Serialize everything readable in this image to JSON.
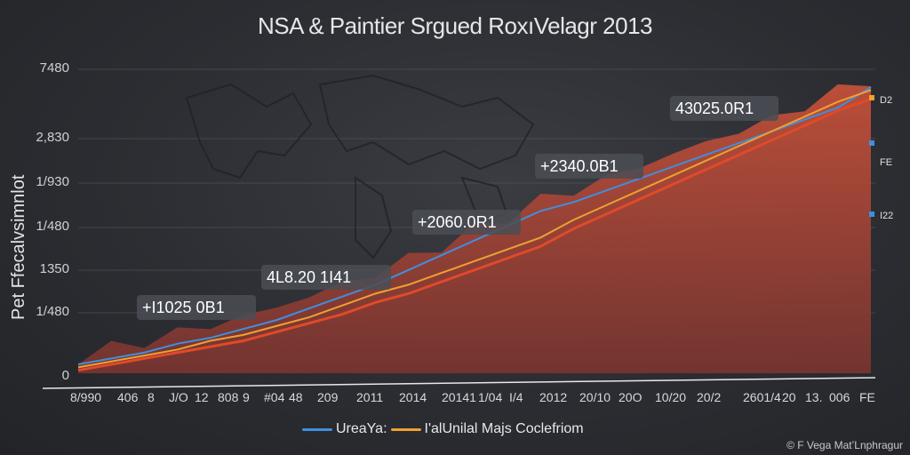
{
  "chart_data": {
    "type": "area",
    "title": "NSA & Paintier Srgued RoxıVelagr 2013",
    "ylabel": "Pet Ffecalvsimnlot",
    "y_ticks": [
      "7480",
      "2,830",
      "1/930",
      "1/480",
      "1350",
      "1/480",
      "0"
    ],
    "x_ticks": [
      "8/990",
      "406",
      "8",
      "J/O",
      "12",
      "808",
      "9",
      "#04",
      "48",
      "209",
      "2011",
      "2014",
      "20141",
      "1/04",
      "I/4",
      "2012",
      "20/10",
      "20O",
      "10/20",
      "20/2",
      "2601/4",
      "20",
      "13.",
      "006",
      "FE"
    ],
    "callouts": [
      "+I1025 0B1",
      "4L8.20 1I41",
      "+2060.0R1",
      "+2340.0B1",
      "43025.0R1"
    ],
    "right_labels": [
      "D2",
      "FE",
      "I22"
    ],
    "series": [
      {
        "name": "UreaYa:",
        "color": "#3f8fe0",
        "values": [
          0.03,
          0.05,
          0.07,
          0.1,
          0.12,
          0.15,
          0.18,
          0.22,
          0.26,
          0.3,
          0.35,
          0.4,
          0.45,
          0.5,
          0.55,
          0.58,
          0.62,
          0.66,
          0.7,
          0.74,
          0.78,
          0.82,
          0.86,
          0.9,
          0.97
        ]
      },
      {
        "name": "I'alUnilal Majs  Coclefriom",
        "color": "#f0a030",
        "values": [
          0.02,
          0.04,
          0.06,
          0.08,
          0.11,
          0.13,
          0.16,
          0.19,
          0.23,
          0.27,
          0.3,
          0.34,
          0.38,
          0.42,
          0.46,
          0.52,
          0.57,
          0.62,
          0.67,
          0.72,
          0.77,
          0.82,
          0.87,
          0.92,
          0.96
        ]
      },
      {
        "name": "",
        "color": "#e04a2a",
        "values": [
          0.01,
          0.03,
          0.05,
          0.07,
          0.09,
          0.11,
          0.14,
          0.17,
          0.2,
          0.24,
          0.27,
          0.31,
          0.35,
          0.39,
          0.43,
          0.49,
          0.54,
          0.59,
          0.64,
          0.69,
          0.74,
          0.79,
          0.84,
          0.89,
          0.93
        ]
      }
    ],
    "grid": true
  },
  "watermark": "© F Vega MatʼLnphragur",
  "colors": {
    "area": "#a8473a",
    "background": "#2c2e33",
    "grid": "#55575c"
  }
}
